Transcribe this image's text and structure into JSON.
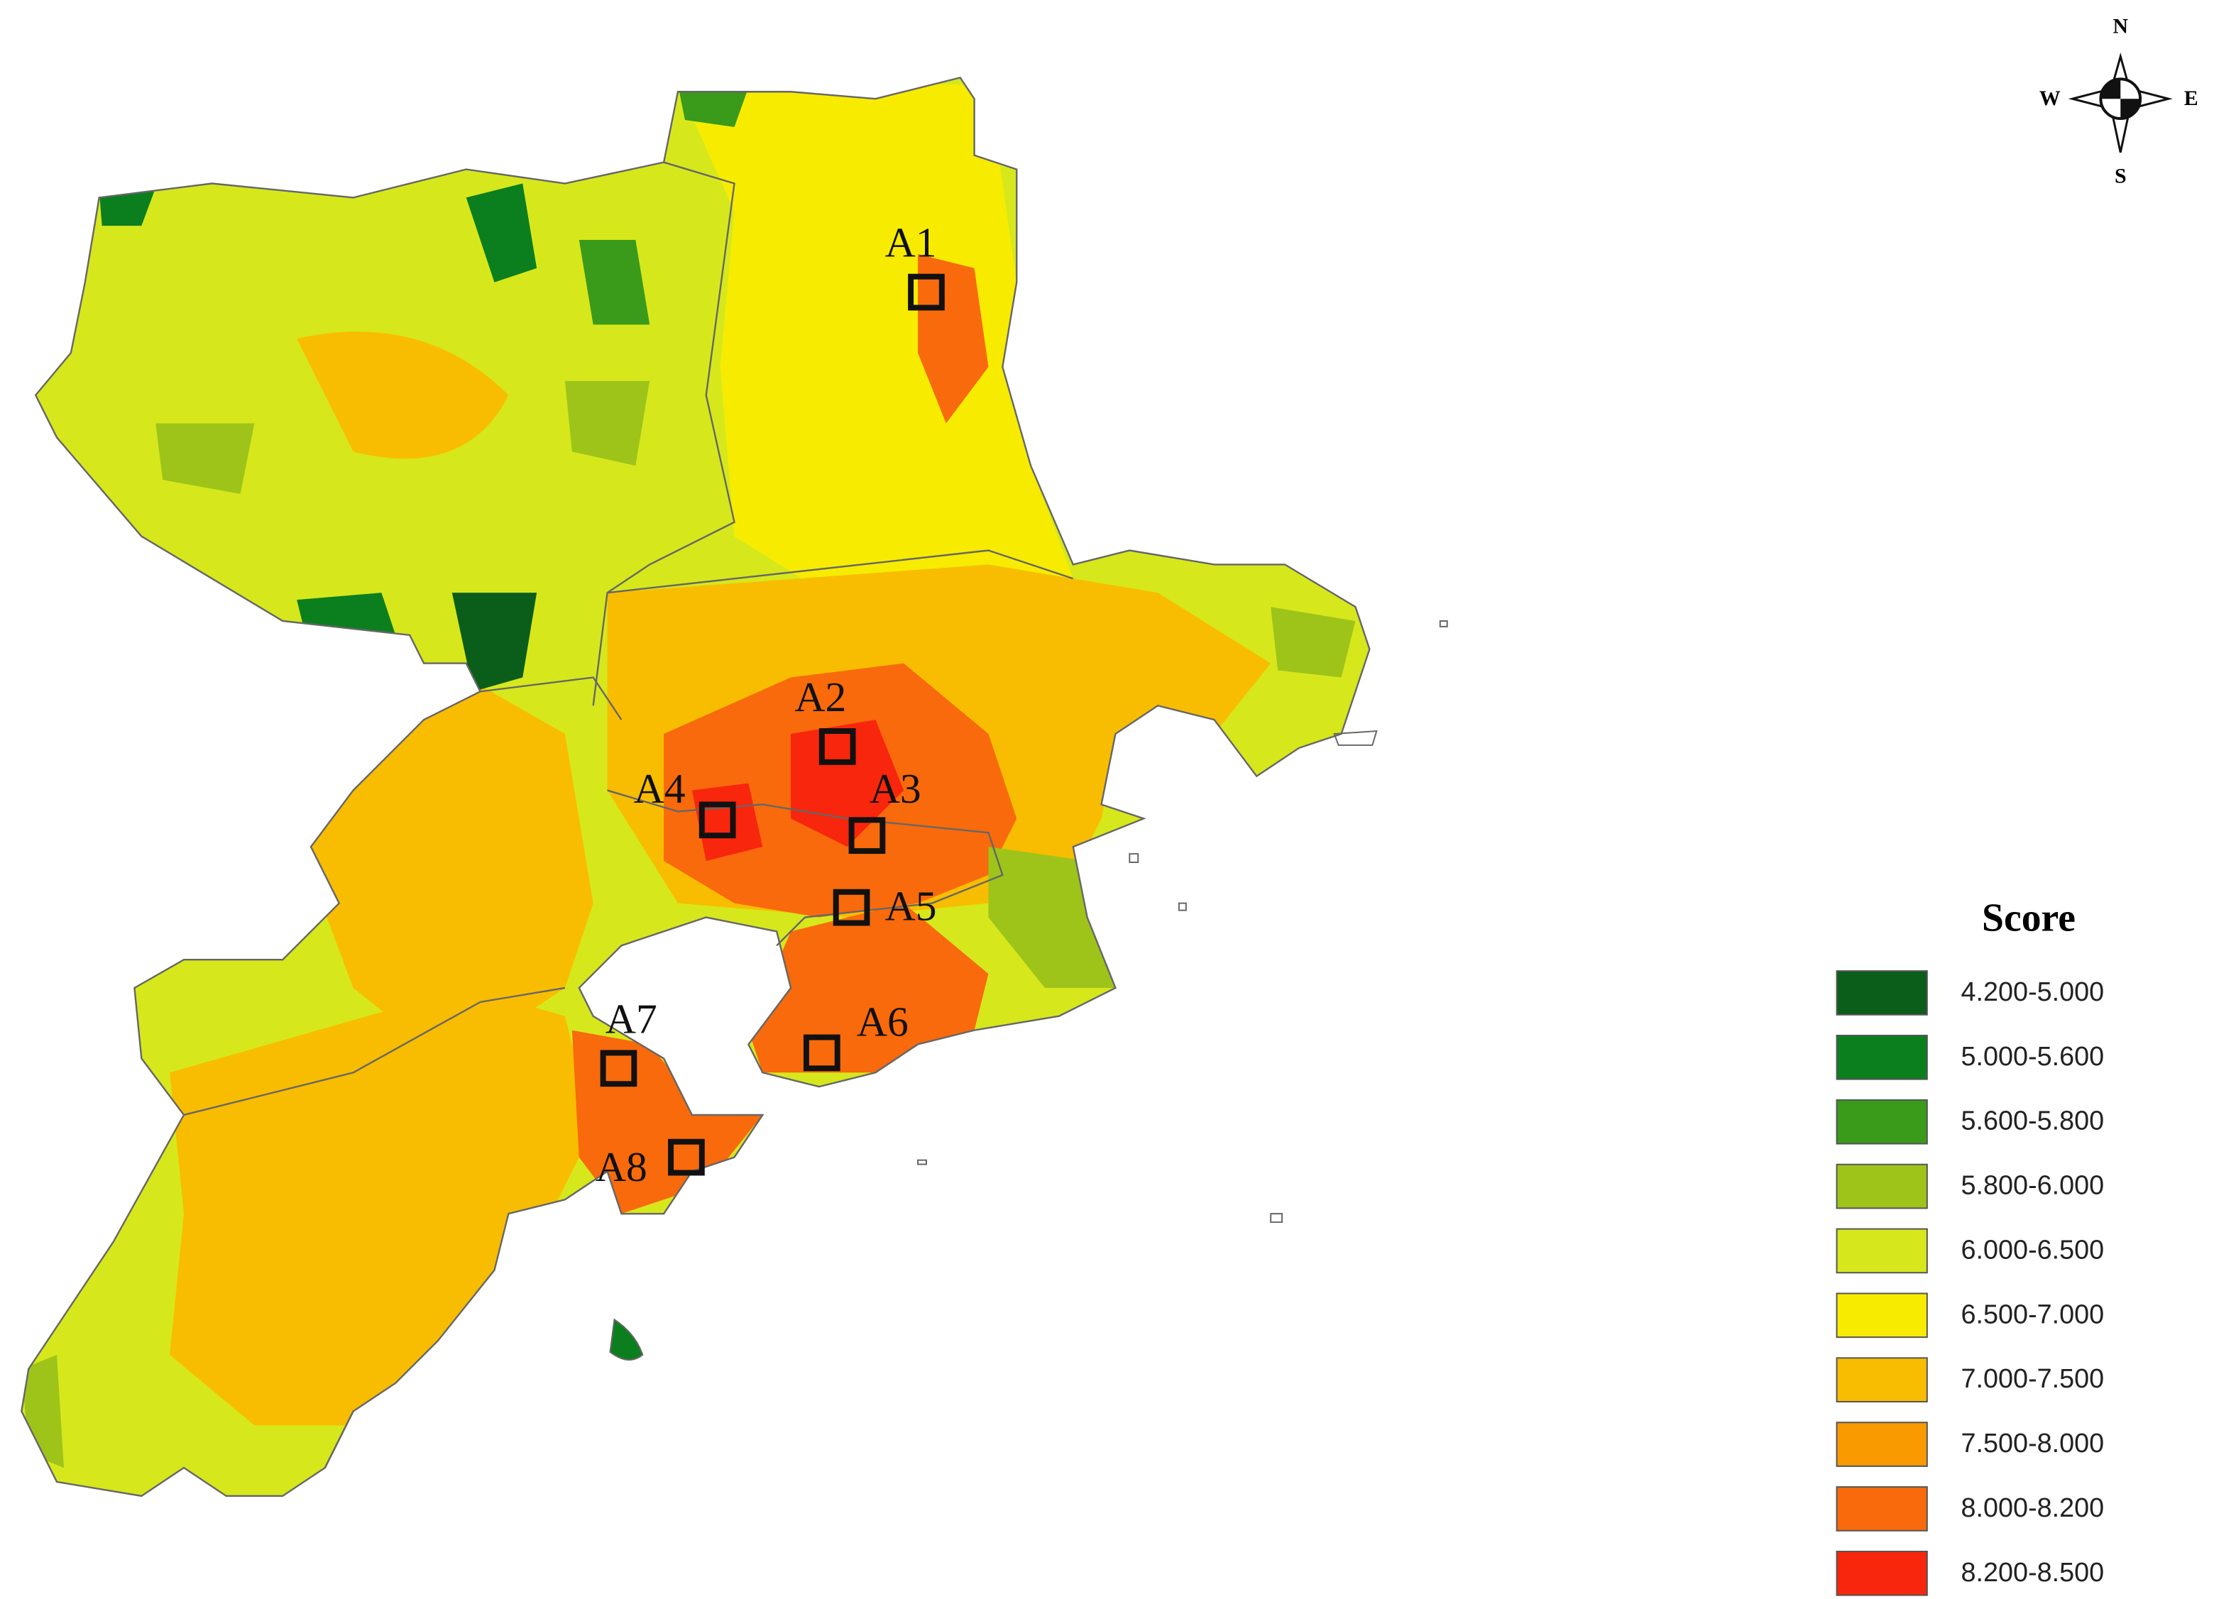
{
  "compass": {
    "n": "N",
    "e": "E",
    "s": "S",
    "w": "W"
  },
  "sites": [
    {
      "label": "A1"
    },
    {
      "label": "A2"
    },
    {
      "label": "A3"
    },
    {
      "label": "A4"
    },
    {
      "label": "A5"
    },
    {
      "label": "A6"
    },
    {
      "label": "A7"
    },
    {
      "label": "A8"
    }
  ],
  "legend": {
    "title": "Score",
    "items": [
      {
        "label": "4.200-5.000",
        "color": "#0b5e1a"
      },
      {
        "label": "5.000-5.600",
        "color": "#0b7f1e"
      },
      {
        "label": "5.600-5.800",
        "color": "#3a9a1a"
      },
      {
        "label": "5.800-6.000",
        "color": "#9ec41a"
      },
      {
        "label": "6.000-6.500",
        "color": "#d6e81c"
      },
      {
        "label": "6.500-7.000",
        "color": "#f7ec00"
      },
      {
        "label": "7.000-7.500",
        "color": "#f8bd00"
      },
      {
        "label": "7.500-8.000",
        "color": "#f89a00"
      },
      {
        "label": "8.000-8.200",
        "color": "#f86a0c"
      },
      {
        "label": "8.200-8.500",
        "color": "#f8260c"
      }
    ]
  }
}
